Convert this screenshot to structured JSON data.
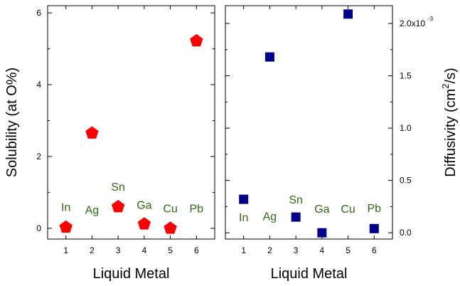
{
  "colors": {
    "left_marker": "#ff0000",
    "right_marker": "#00008b",
    "annotation": "#2e6b12",
    "axis": "#000000"
  },
  "chart_data": [
    {
      "type": "scatter",
      "marker": "pentagon",
      "xlabel": "Liquid Metal",
      "ylabel": "Solubility (at O%)",
      "xlim": [
        0.3,
        6.7
      ],
      "ylim": [
        -0.3,
        6.2
      ],
      "x_ticks": [
        1,
        2,
        3,
        4,
        5,
        6
      ],
      "y_ticks": [
        0,
        2,
        4,
        6
      ],
      "x_tick_labels": [
        "1",
        "2",
        "3",
        "4",
        "5",
        "6"
      ],
      "y_tick_labels": [
        "0",
        "2",
        "4",
        "6"
      ],
      "points": [
        {
          "x": 1,
          "y": 0.03
        },
        {
          "x": 2,
          "y": 2.65
        },
        {
          "x": 3,
          "y": 0.6
        },
        {
          "x": 4,
          "y": 0.12
        },
        {
          "x": 5,
          "y": 0.0
        },
        {
          "x": 6,
          "y": 5.22
        }
      ],
      "annotations": [
        {
          "text": "In",
          "x": 1,
          "y": 0.48
        },
        {
          "text": "Ag",
          "x": 2,
          "y": 0.4
        },
        {
          "text": "Sn",
          "x": 3,
          "y": 1.05
        },
        {
          "text": "Ga",
          "x": 4,
          "y": 0.54
        },
        {
          "text": "Cu",
          "x": 5,
          "y": 0.44
        },
        {
          "text": "Pb",
          "x": 6,
          "y": 0.44
        }
      ],
      "y_axis_side": "left",
      "grid": false
    },
    {
      "type": "scatter",
      "marker": "square",
      "xlabel": "Liquid Metal",
      "ylabel": "Diffusivity (cm²/s)",
      "ylabel_base": "Diffusivity (cm",
      "ylabel_sup": "2",
      "ylabel_tail": "/s)",
      "xlim": [
        0.3,
        6.7
      ],
      "ylim": [
        -6e-05,
        0.00217
      ],
      "x_ticks": [
        1,
        2,
        3,
        4,
        5,
        6
      ],
      "y_ticks": [
        0,
        0.0005,
        0.001,
        0.0015,
        0.002
      ],
      "x_tick_labels": [
        "1",
        "2",
        "3",
        "4",
        "5",
        "6"
      ],
      "y_tick_labels": [
        "0.0",
        "0.5",
        "1.0",
        "1.5",
        "2.0x10"
      ],
      "y_exponent": "-3",
      "points": [
        {
          "x": 1,
          "y": 0.00032
        },
        {
          "x": 2,
          "y": 0.00168
        },
        {
          "x": 3,
          "y": 0.00015
        },
        {
          "x": 4,
          "y": 0.0
        },
        {
          "x": 5,
          "y": 0.00209
        },
        {
          "x": 6,
          "y": 4e-05
        }
      ],
      "annotations": [
        {
          "text": "In",
          "x": 1,
          "y": 0.00011
        },
        {
          "text": "Ag",
          "x": 2,
          "y": 0.00012
        },
        {
          "text": "Sn",
          "x": 3,
          "y": 0.00028
        },
        {
          "text": "Ga",
          "x": 4,
          "y": 0.00019
        },
        {
          "text": "Cu",
          "x": 5,
          "y": 0.00019
        },
        {
          "text": "Pb",
          "x": 6,
          "y": 0.0002
        }
      ],
      "y_axis_side": "right",
      "grid": false
    }
  ]
}
